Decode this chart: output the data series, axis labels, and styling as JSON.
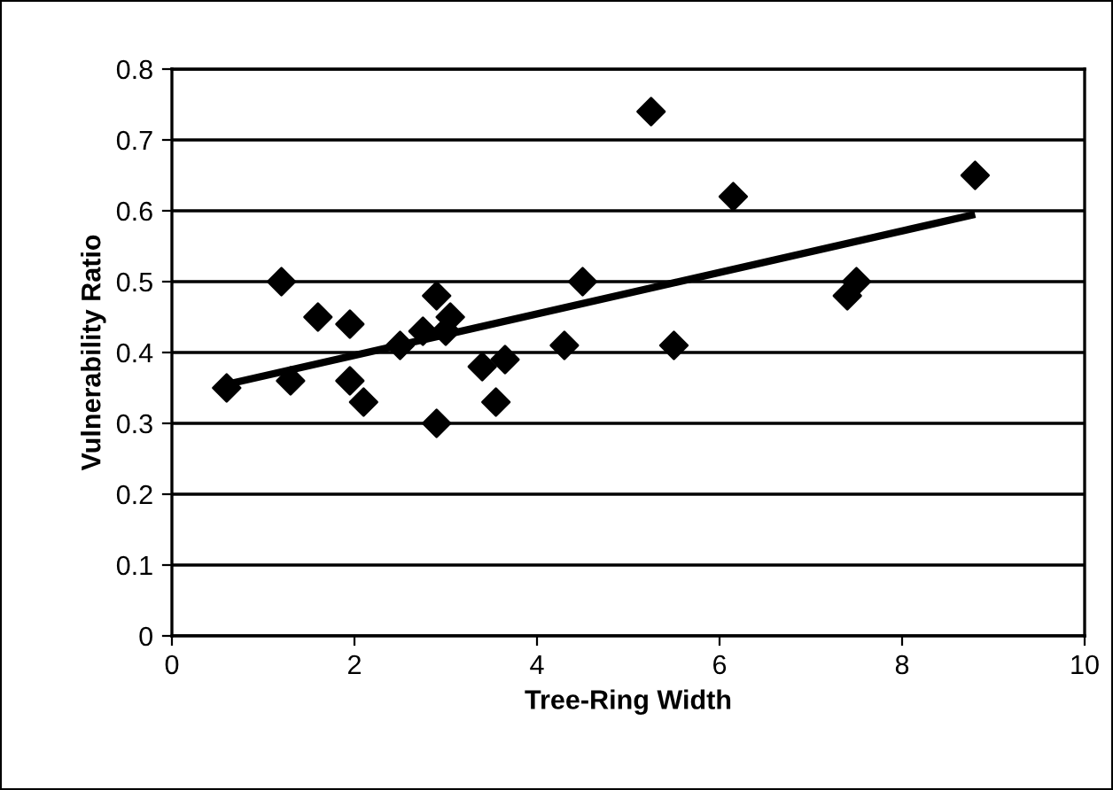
{
  "chart_data": {
    "type": "scatter",
    "xlabel": "Tree-Ring Width",
    "ylabel": "Vulnerability Ratio",
    "xlim": [
      0,
      10
    ],
    "xticks": [
      0,
      2,
      4,
      6,
      8,
      10
    ],
    "ylim": [
      0,
      0.8
    ],
    "yticks": [
      0,
      0.1,
      0.2,
      0.3,
      0.4,
      0.5,
      0.6,
      0.7,
      0.8
    ],
    "grid": "y",
    "marker": "diamond",
    "series": [
      {
        "color": "#000000",
        "x": [
          0.6,
          1.2,
          1.3,
          1.6,
          1.95,
          1.95,
          2.1,
          2.5,
          2.75,
          2.9,
          2.9,
          3.0,
          3.05,
          3.4,
          3.55,
          3.65,
          4.3,
          4.5,
          5.25,
          5.5,
          6.15,
          7.4,
          7.5,
          8.8
        ],
        "values": [
          0.35,
          0.5,
          0.36,
          0.45,
          0.44,
          0.36,
          0.33,
          0.41,
          0.43,
          0.48,
          0.3,
          0.43,
          0.45,
          0.38,
          0.33,
          0.39,
          0.41,
          0.5,
          0.74,
          0.41,
          0.62,
          0.48,
          0.5,
          0.65
        ]
      },
      {
        "type": "line",
        "color": "#000000",
        "marker": "none",
        "x": [
          0.6,
          8.8
        ],
        "values": [
          0.355,
          0.595
        ]
      }
    ]
  }
}
